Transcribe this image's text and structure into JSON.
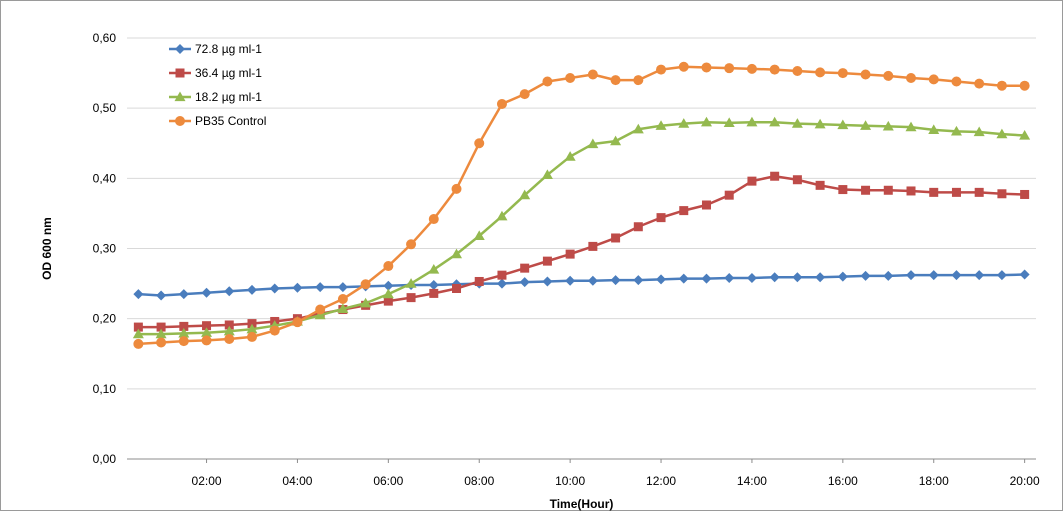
{
  "chart_data": {
    "type": "line",
    "title": "",
    "xlabel": "Time(Hour)",
    "ylabel": "OD 600 nm",
    "xlim": [
      0.25,
      20.25
    ],
    "ylim": [
      0,
      0.6
    ],
    "y_ticks": [
      "0,00",
      "0,10",
      "0,20",
      "0,30",
      "0,40",
      "0,50",
      "0,60"
    ],
    "x_ticks": [
      "02:00",
      "04:00",
      "06:00",
      "08:00",
      "10:00",
      "12:00",
      "14:00",
      "16:00",
      "18:00",
      "20:00"
    ],
    "grid": "horizontal",
    "legend": "top-left",
    "x": [
      0.5,
      1.0,
      1.5,
      2.0,
      2.5,
      3.0,
      3.5,
      4.0,
      4.5,
      5.0,
      5.5,
      6.0,
      6.5,
      7.0,
      7.5,
      8.0,
      8.5,
      9.0,
      9.5,
      10.0,
      10.5,
      11.0,
      11.5,
      12.0,
      12.5,
      13.0,
      13.5,
      14.0,
      14.5,
      15.0,
      15.5,
      16.0,
      16.5,
      17.0,
      17.5,
      18.0,
      18.5,
      19.0,
      19.5,
      20.0
    ],
    "series": [
      {
        "name": "72.8 µg ml-1",
        "color": "#4a7dbd",
        "marker": "diamond",
        "values": [
          0.235,
          0.233,
          0.235,
          0.237,
          0.239,
          0.241,
          0.243,
          0.244,
          0.245,
          0.245,
          0.246,
          0.247,
          0.248,
          0.248,
          0.249,
          0.25,
          0.25,
          0.252,
          0.253,
          0.254,
          0.254,
          0.255,
          0.255,
          0.256,
          0.257,
          0.257,
          0.258,
          0.258,
          0.259,
          0.259,
          0.259,
          0.26,
          0.261,
          0.261,
          0.262,
          0.262,
          0.262,
          0.262,
          0.262,
          0.263
        ]
      },
      {
        "name": "36.4 µg ml-1",
        "color": "#be4b48",
        "marker": "square",
        "values": [
          0.188,
          0.188,
          0.189,
          0.19,
          0.191,
          0.193,
          0.196,
          0.2,
          0.207,
          0.213,
          0.219,
          0.225,
          0.23,
          0.236,
          0.243,
          0.253,
          0.262,
          0.272,
          0.282,
          0.292,
          0.303,
          0.315,
          0.331,
          0.344,
          0.354,
          0.362,
          0.376,
          0.396,
          0.403,
          0.398,
          0.39,
          0.384,
          0.383,
          0.383,
          0.382,
          0.38,
          0.38,
          0.38,
          0.378,
          0.377
        ]
      },
      {
        "name": "18.2 µg ml-1",
        "color": "#94b94f",
        "marker": "triangle",
        "values": [
          0.178,
          0.178,
          0.179,
          0.18,
          0.182,
          0.185,
          0.19,
          0.196,
          0.205,
          0.214,
          0.222,
          0.235,
          0.25,
          0.27,
          0.292,
          0.318,
          0.346,
          0.376,
          0.405,
          0.431,
          0.449,
          0.453,
          0.47,
          0.475,
          0.478,
          0.48,
          0.479,
          0.48,
          0.48,
          0.478,
          0.477,
          0.476,
          0.475,
          0.474,
          0.473,
          0.469,
          0.467,
          0.466,
          0.463,
          0.461
        ]
      },
      {
        "name": "PB35 Control",
        "color": "#ed8a3d",
        "marker": "circle",
        "values": [
          0.164,
          0.166,
          0.168,
          0.169,
          0.171,
          0.174,
          0.183,
          0.195,
          0.213,
          0.228,
          0.249,
          0.275,
          0.306,
          0.342,
          0.385,
          0.45,
          0.506,
          0.52,
          0.538,
          0.543,
          0.548,
          0.54,
          0.54,
          0.555,
          0.559,
          0.558,
          0.557,
          0.556,
          0.555,
          0.553,
          0.551,
          0.55,
          0.548,
          0.546,
          0.543,
          0.541,
          0.538,
          0.535,
          0.532,
          0.532
        ]
      }
    ]
  }
}
